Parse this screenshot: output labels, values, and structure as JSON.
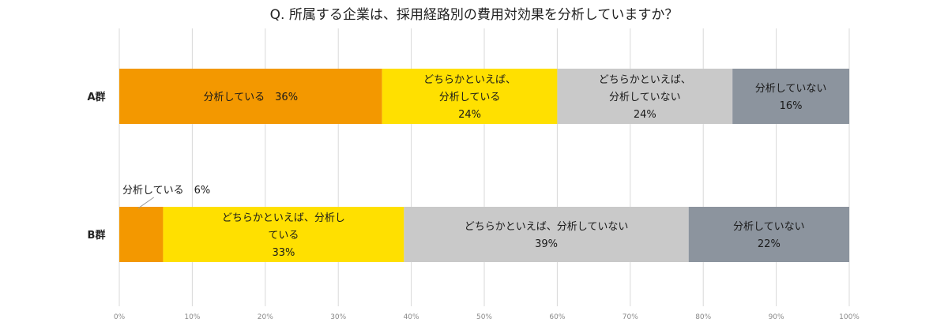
{
  "chart_data": {
    "type": "bar",
    "orientation": "horizontal",
    "stacked": true,
    "title": "Q. 所属する企業は、採用経路別の費用対効果を分析していますか？",
    "categories": [
      "A群",
      "B群"
    ],
    "series": [
      {
        "name": "分析している",
        "color": "#f39800",
        "values": [
          36,
          6
        ]
      },
      {
        "name": "どちらかといえば、分析している",
        "color": "#ffe000",
        "values": [
          24,
          33
        ]
      },
      {
        "name": "どちらかといえば、分析していない",
        "color": "#c9c9c9",
        "values": [
          24,
          39
        ]
      },
      {
        "name": "分析していない",
        "color": "#8c949e",
        "values": [
          16,
          22
        ]
      }
    ],
    "data_labels": [
      [
        [
          "分析している　36%"
        ],
        [
          "どちらかといえば、",
          "分析している",
          "24%"
        ],
        [
          "どちらかといえば、",
          "分析していない",
          "24%"
        ],
        [
          "分析していない",
          "16%"
        ]
      ],
      [
        [],
        [
          "どちらかといえば、分析し",
          "ている",
          "33%"
        ],
        [
          "どちらかといえば、分析していない",
          "39%"
        ],
        [
          "分析していない",
          "22%"
        ]
      ]
    ],
    "callout": {
      "text": "分析している　6%",
      "category": "B群",
      "series": "分析している"
    },
    "x_ticks": [
      "0%",
      "10%",
      "20%",
      "30%",
      "40%",
      "50%",
      "60%",
      "70%",
      "80%",
      "90%",
      "100%"
    ],
    "xlim": [
      0,
      100
    ],
    "grid": true,
    "legend": "none"
  }
}
